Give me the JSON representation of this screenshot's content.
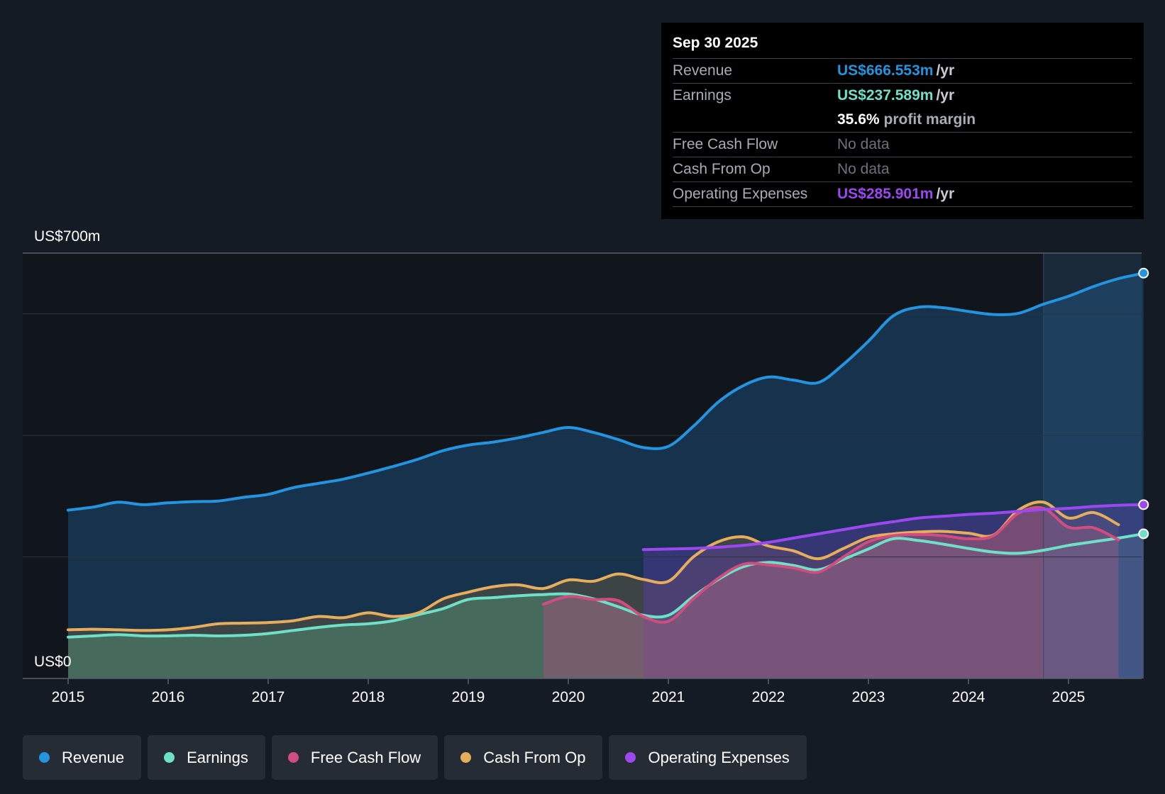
{
  "tooltip": {
    "date": "Sep 30 2025",
    "rows": {
      "revenue": {
        "label": "Revenue",
        "value": "US$666.553m",
        "unit": "/yr"
      },
      "earnings": {
        "label": "Earnings",
        "value": "US$237.589m",
        "unit": "/yr"
      },
      "margin": {
        "value": "35.6%",
        "label": "profit margin"
      },
      "fcf": {
        "label": "Free Cash Flow",
        "value": "No data"
      },
      "cfo": {
        "label": "Cash From Op",
        "value": "No data"
      },
      "opex": {
        "label": "Operating Expenses",
        "value": "US$285.901m",
        "unit": "/yr"
      }
    }
  },
  "legend": {
    "revenue": "Revenue",
    "earnings": "Earnings",
    "fcf": "Free Cash Flow",
    "cfo": "Cash From Op",
    "opex": "Operating Expenses"
  },
  "colors": {
    "revenue": "#2394df",
    "earnings": "#6fe0c8",
    "fcf": "#cf4d7f",
    "cfo": "#e6ae5c",
    "opex": "#9c48f0",
    "background": "#151b24",
    "grid": "#2c333d"
  },
  "chart_data": {
    "type": "line",
    "title": "",
    "ylim": [
      0,
      700
    ],
    "y_ticks": [
      0,
      200,
      400,
      600,
      700
    ],
    "y_labels": {
      "top": "US$700m",
      "bottom": "US$0"
    },
    "x_ticks": [
      "2015",
      "2016",
      "2017",
      "2018",
      "2019",
      "2020",
      "2021",
      "2022",
      "2023",
      "2024",
      "2025"
    ],
    "x_range": [
      2015.0,
      2025.75
    ],
    "forecast_start": 2024.75,
    "series": [
      {
        "key": "revenue",
        "name": "Revenue",
        "points": [
          [
            2015.0,
            277
          ],
          [
            2015.25,
            282
          ],
          [
            2015.5,
            290
          ],
          [
            2015.75,
            286
          ],
          [
            2016.0,
            289
          ],
          [
            2016.25,
            291
          ],
          [
            2016.5,
            292
          ],
          [
            2016.75,
            298
          ],
          [
            2017.0,
            303
          ],
          [
            2017.25,
            314
          ],
          [
            2017.5,
            321
          ],
          [
            2017.75,
            328
          ],
          [
            2018.0,
            338
          ],
          [
            2018.25,
            349
          ],
          [
            2018.5,
            361
          ],
          [
            2018.75,
            375
          ],
          [
            2019.0,
            384
          ],
          [
            2019.25,
            389
          ],
          [
            2019.5,
            396
          ],
          [
            2019.75,
            405
          ],
          [
            2020.0,
            413
          ],
          [
            2020.25,
            405
          ],
          [
            2020.5,
            393
          ],
          [
            2020.75,
            380
          ],
          [
            2021.0,
            382
          ],
          [
            2021.25,
            415
          ],
          [
            2021.5,
            455
          ],
          [
            2021.75,
            482
          ],
          [
            2022.0,
            496
          ],
          [
            2022.25,
            491
          ],
          [
            2022.5,
            487
          ],
          [
            2022.75,
            517
          ],
          [
            2023.0,
            555
          ],
          [
            2023.25,
            597
          ],
          [
            2023.5,
            611
          ],
          [
            2023.75,
            610
          ],
          [
            2024.0,
            604
          ],
          [
            2024.25,
            599
          ],
          [
            2024.5,
            601
          ],
          [
            2024.75,
            616
          ],
          [
            2025.0,
            629
          ],
          [
            2025.25,
            645
          ],
          [
            2025.5,
            658
          ],
          [
            2025.75,
            667
          ]
        ]
      },
      {
        "key": "earnings",
        "name": "Earnings",
        "points": [
          [
            2015.0,
            68
          ],
          [
            2015.25,
            70
          ],
          [
            2015.5,
            72
          ],
          [
            2015.75,
            70
          ],
          [
            2016.0,
            70
          ],
          [
            2016.25,
            71
          ],
          [
            2016.5,
            70
          ],
          [
            2016.75,
            71
          ],
          [
            2017.0,
            74
          ],
          [
            2017.25,
            79
          ],
          [
            2017.5,
            84
          ],
          [
            2017.75,
            88
          ],
          [
            2018.0,
            90
          ],
          [
            2018.25,
            95
          ],
          [
            2018.5,
            105
          ],
          [
            2018.75,
            115
          ],
          [
            2019.0,
            130
          ],
          [
            2019.25,
            133
          ],
          [
            2019.5,
            136
          ],
          [
            2019.75,
            138
          ],
          [
            2020.0,
            139
          ],
          [
            2020.25,
            131
          ],
          [
            2020.5,
            118
          ],
          [
            2020.75,
            104
          ],
          [
            2021.0,
            104
          ],
          [
            2021.25,
            135
          ],
          [
            2021.5,
            163
          ],
          [
            2021.75,
            184
          ],
          [
            2022.0,
            191
          ],
          [
            2022.25,
            186
          ],
          [
            2022.5,
            179
          ],
          [
            2022.75,
            196
          ],
          [
            2023.0,
            213
          ],
          [
            2023.25,
            230
          ],
          [
            2023.5,
            227
          ],
          [
            2023.75,
            221
          ],
          [
            2024.0,
            214
          ],
          [
            2024.25,
            208
          ],
          [
            2024.5,
            206
          ],
          [
            2024.75,
            211
          ],
          [
            2025.0,
            219
          ],
          [
            2025.25,
            225
          ],
          [
            2025.5,
            231
          ],
          [
            2025.75,
            238
          ]
        ]
      },
      {
        "key": "fcf",
        "name": "Free Cash Flow",
        "points": [
          [
            2019.75,
            122
          ],
          [
            2020.0,
            135
          ],
          [
            2020.25,
            130
          ],
          [
            2020.5,
            128
          ],
          [
            2020.75,
            102
          ],
          [
            2021.0,
            94
          ],
          [
            2021.25,
            131
          ],
          [
            2021.5,
            165
          ],
          [
            2021.75,
            188
          ],
          [
            2022.0,
            187
          ],
          [
            2022.25,
            182
          ],
          [
            2022.5,
            175
          ],
          [
            2022.75,
            200
          ],
          [
            2023.0,
            225
          ],
          [
            2023.25,
            235
          ],
          [
            2023.5,
            237
          ],
          [
            2023.75,
            235
          ],
          [
            2024.0,
            230
          ],
          [
            2024.25,
            235
          ],
          [
            2024.5,
            272
          ],
          [
            2024.75,
            280
          ],
          [
            2025.0,
            249
          ],
          [
            2025.25,
            248
          ],
          [
            2025.5,
            228
          ]
        ]
      },
      {
        "key": "cfo",
        "name": "Cash From Op",
        "points": [
          [
            2015.0,
            80
          ],
          [
            2015.25,
            81
          ],
          [
            2015.5,
            80
          ],
          [
            2015.75,
            79
          ],
          [
            2016.0,
            80
          ],
          [
            2016.25,
            84
          ],
          [
            2016.5,
            90
          ],
          [
            2016.75,
            91
          ],
          [
            2017.0,
            92
          ],
          [
            2017.25,
            95
          ],
          [
            2017.5,
            102
          ],
          [
            2017.75,
            100
          ],
          [
            2018.0,
            108
          ],
          [
            2018.25,
            102
          ],
          [
            2018.5,
            108
          ],
          [
            2018.75,
            131
          ],
          [
            2019.0,
            142
          ],
          [
            2019.25,
            151
          ],
          [
            2019.5,
            154
          ],
          [
            2019.75,
            148
          ],
          [
            2020.0,
            162
          ],
          [
            2020.25,
            160
          ],
          [
            2020.5,
            172
          ],
          [
            2020.75,
            163
          ],
          [
            2021.0,
            160
          ],
          [
            2021.25,
            200
          ],
          [
            2021.5,
            225
          ],
          [
            2021.75,
            233
          ],
          [
            2022.0,
            218
          ],
          [
            2022.25,
            210
          ],
          [
            2022.5,
            197
          ],
          [
            2022.75,
            214
          ],
          [
            2023.0,
            232
          ],
          [
            2023.25,
            238
          ],
          [
            2023.5,
            241
          ],
          [
            2023.75,
            242
          ],
          [
            2024.0,
            239
          ],
          [
            2024.25,
            236
          ],
          [
            2024.5,
            277
          ],
          [
            2024.75,
            290
          ],
          [
            2025.0,
            264
          ],
          [
            2025.25,
            273
          ],
          [
            2025.5,
            253
          ]
        ]
      },
      {
        "key": "opex",
        "name": "Operating Expenses",
        "points": [
          [
            2020.75,
            212
          ],
          [
            2021.0,
            213
          ],
          [
            2021.25,
            214
          ],
          [
            2021.5,
            216
          ],
          [
            2021.75,
            219
          ],
          [
            2022.0,
            224
          ],
          [
            2022.25,
            231
          ],
          [
            2022.5,
            238
          ],
          [
            2022.75,
            245
          ],
          [
            2023.0,
            252
          ],
          [
            2023.25,
            258
          ],
          [
            2023.5,
            264
          ],
          [
            2023.75,
            267
          ],
          [
            2024.0,
            270
          ],
          [
            2024.25,
            272
          ],
          [
            2024.5,
            275
          ],
          [
            2024.75,
            278
          ],
          [
            2025.0,
            280
          ],
          [
            2025.25,
            283
          ],
          [
            2025.5,
            285
          ],
          [
            2025.75,
            286
          ]
        ]
      }
    ]
  }
}
